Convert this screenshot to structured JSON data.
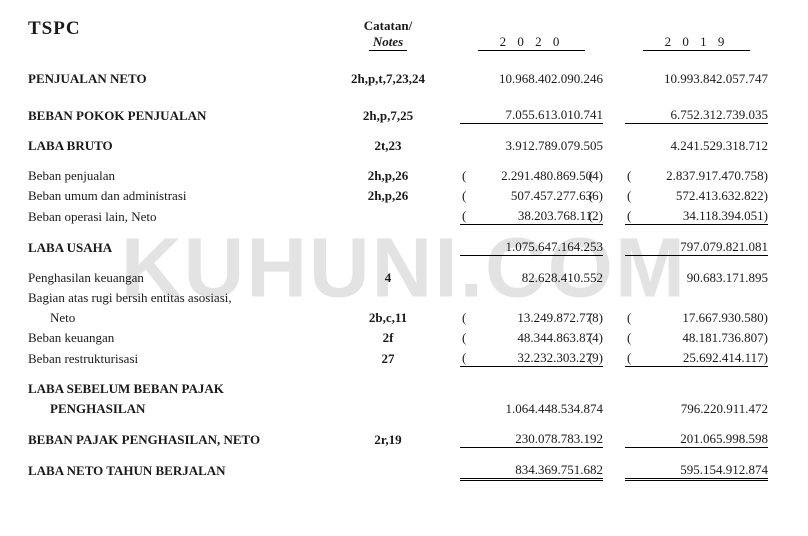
{
  "company": "TSPC",
  "watermark": "KUHUNI.COM",
  "header": {
    "notes_label_top": "Catatan/",
    "notes_label_bot": "Notes",
    "year_a": "2 0 2 0",
    "year_b": "2 0 1 9"
  },
  "rows": [
    {
      "label": "PENJUALAN NETO",
      "notes": "2h,p,t,7,23,24",
      "a": "10.968.402.090.246",
      "b": "10.993.842.057.747",
      "bold": true,
      "spacer_before": "lg",
      "spacer_after": "lg"
    },
    {
      "label": "BEBAN POKOK PENJUALAN",
      "notes": "2h,p,7,25",
      "a": "7.055.613.010.741",
      "b": "6.752.312.739.035",
      "bold": true,
      "u_a": "bottom",
      "u_b": "bottom",
      "spacer_after": "sm"
    },
    {
      "label": "LABA BRUTO",
      "notes": "2t,23",
      "a": "3.912.789.079.505",
      "b": "4.241.529.318.712",
      "bold": true,
      "spacer_after": "sm"
    },
    {
      "label": "Beban penjualan",
      "notes": "2h,p,26",
      "a": "2.291.480.869.504",
      "b": "2.837.917.470.758",
      "paren_a": true,
      "paren_b": true
    },
    {
      "label": "Beban umum dan administrasi",
      "notes": "2h,p,26",
      "a": "507.457.277.636",
      "b": "572.413.632.822",
      "paren_a": true,
      "paren_b": true
    },
    {
      "label": "Beban operasi lain, Neto",
      "notes": "",
      "a": "38.203.768.112",
      "b": "34.118.394.051",
      "paren_a": true,
      "paren_b": true,
      "u_a": "bottom",
      "u_b": "bottom",
      "spacer_after": "sm"
    },
    {
      "label": "LABA USAHA",
      "notes": "",
      "a": "1.075.647.164.253",
      "b": "797.079.821.081",
      "bold": true,
      "u_a": "bottom",
      "u_b": "bottom",
      "spacer_after": "sm"
    },
    {
      "label": "Penghasilan keuangan",
      "notes": "4",
      "a": "82.628.410.552",
      "b": "90.683.171.895"
    },
    {
      "label": "Bagian atas rugi bersih entitas asosiasi,",
      "notes": "",
      "a": "",
      "b": ""
    },
    {
      "label": "Neto",
      "notes": "2b,c,11",
      "a": "13.249.872.778",
      "b": "17.667.930.580",
      "paren_a": true,
      "paren_b": true,
      "indent": 2
    },
    {
      "label": "Beban keuangan",
      "notes": "2f",
      "a": "48.344.863.874",
      "b": "48.181.736.807",
      "paren_a": true,
      "paren_b": true
    },
    {
      "label": "Beban restrukturisasi",
      "notes": "27",
      "a": "32.232.303.279",
      "b": "25.692.414.117",
      "paren_a": true,
      "paren_b": true,
      "u_a": "bottom",
      "u_b": "bottom",
      "spacer_after": "sm"
    },
    {
      "label": "LABA SEBELUM BEBAN PAJAK",
      "notes": "",
      "a": "",
      "b": "",
      "bold": true
    },
    {
      "label": "PENGHASILAN",
      "notes": "",
      "a": "1.064.448.534.874",
      "b": "796.220.911.472",
      "bold": true,
      "indent": 1,
      "spacer_after": "sm"
    },
    {
      "label": "BEBAN PAJAK PENGHASILAN, NETO",
      "notes": "2r,19",
      "a": "230.078.783.192",
      "b": "201.065.998.598",
      "bold": true,
      "u_a": "bottom",
      "u_b": "bottom",
      "spacer_after": "sm"
    },
    {
      "label": "LABA NETO TAHUN BERJALAN",
      "notes": "",
      "a": "834.369.751.682",
      "b": "595.154.912.874",
      "bold": true,
      "u_a": "dbl",
      "u_b": "dbl"
    }
  ]
}
